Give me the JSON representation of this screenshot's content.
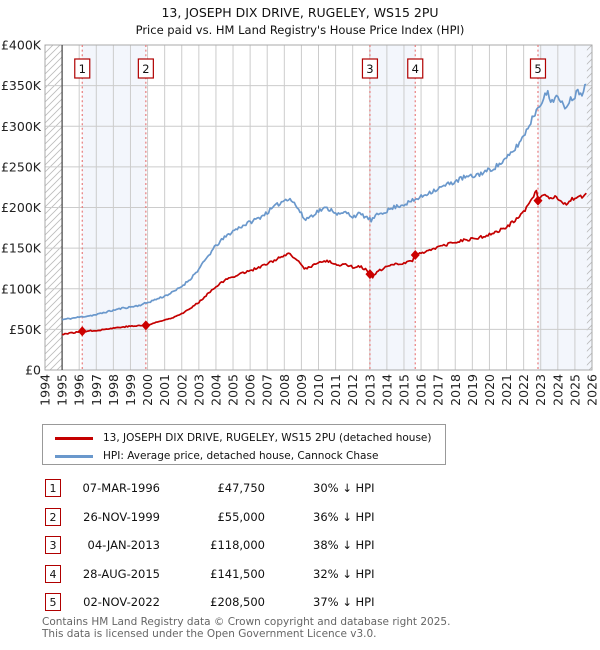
{
  "title": "13, JOSEPH DIX DRIVE, RUGELEY, WS15 2PU",
  "subtitle": "Price paid vs. HM Land Registry's House Price Index (HPI)",
  "chart_data": {
    "type": "line",
    "x_range": [
      1994,
      2026
    ],
    "y_range": [
      0,
      400000
    ],
    "grid": true,
    "legend_position": "bottom",
    "x_ticks": [
      1994,
      1995,
      1996,
      1997,
      1998,
      1999,
      2000,
      2001,
      2002,
      2003,
      2004,
      2005,
      2006,
      2007,
      2008,
      2009,
      2010,
      2011,
      2012,
      2013,
      2014,
      2015,
      2016,
      2017,
      2018,
      2019,
      2020,
      2021,
      2022,
      2023,
      2024,
      2025,
      2026
    ],
    "y_ticks": [
      {
        "v": 0,
        "label": "£0"
      },
      {
        "v": 50000,
        "label": "£50K"
      },
      {
        "v": 100000,
        "label": "£100K"
      },
      {
        "v": 150000,
        "label": "£150K"
      },
      {
        "v": 200000,
        "label": "£200K"
      },
      {
        "v": 250000,
        "label": "£250K"
      },
      {
        "v": 300000,
        "label": "£300K"
      },
      {
        "v": 350000,
        "label": "£350K"
      },
      {
        "v": 400000,
        "label": "£400K"
      }
    ],
    "series": [
      {
        "name": "13, JOSEPH DIX DRIVE, RUGELEY, WS15 2PU (detached house)",
        "color": "#c40000",
        "points": [
          [
            1995.0,
            44000
          ],
          [
            1995.5,
            45500
          ],
          [
            1996.0,
            46800
          ],
          [
            1996.18,
            47750
          ],
          [
            1996.5,
            48000
          ],
          [
            1997.0,
            48700
          ],
          [
            1997.5,
            50000
          ],
          [
            1998.0,
            51500
          ],
          [
            1998.5,
            53000
          ],
          [
            1999.0,
            53800
          ],
          [
            1999.5,
            54500
          ],
          [
            1999.9,
            55000
          ],
          [
            2000.2,
            56500
          ],
          [
            2000.5,
            58500
          ],
          [
            2001.0,
            61500
          ],
          [
            2001.5,
            65000
          ],
          [
            2002.0,
            69500
          ],
          [
            2002.5,
            75500
          ],
          [
            2003.0,
            83500
          ],
          [
            2003.5,
            93500
          ],
          [
            2004.0,
            103000
          ],
          [
            2004.5,
            110000
          ],
          [
            2005.0,
            115000
          ],
          [
            2005.5,
            119000
          ],
          [
            2006.0,
            122500
          ],
          [
            2006.5,
            126000
          ],
          [
            2007.0,
            130500
          ],
          [
            2007.5,
            136000
          ],
          [
            2008.0,
            140500
          ],
          [
            2008.3,
            142500
          ],
          [
            2008.7,
            136000
          ],
          [
            2009.2,
            124500
          ],
          [
            2009.6,
            128000
          ],
          [
            2010.0,
            132000
          ],
          [
            2010.4,
            134000
          ],
          [
            2010.8,
            132500
          ],
          [
            2011.2,
            128500
          ],
          [
            2011.6,
            130500
          ],
          [
            2012.0,
            126500
          ],
          [
            2012.4,
            128000
          ],
          [
            2012.8,
            123000
          ],
          [
            2013.01,
            118000
          ],
          [
            2013.15,
            113500
          ],
          [
            2013.4,
            120000
          ],
          [
            2013.7,
            124000
          ],
          [
            2014.0,
            127000
          ],
          [
            2014.5,
            130000
          ],
          [
            2015.0,
            132000
          ],
          [
            2015.5,
            134500
          ],
          [
            2015.66,
            141500
          ],
          [
            2016.0,
            144000
          ],
          [
            2016.5,
            148000
          ],
          [
            2017.0,
            151000
          ],
          [
            2017.5,
            154000
          ],
          [
            2018.0,
            157000
          ],
          [
            2018.5,
            160000
          ],
          [
            2019.0,
            161000
          ],
          [
            2019.5,
            163500
          ],
          [
            2020.0,
            166500
          ],
          [
            2020.5,
            170500
          ],
          [
            2021.0,
            176000
          ],
          [
            2021.5,
            184000
          ],
          [
            2022.0,
            195000
          ],
          [
            2022.4,
            206500
          ],
          [
            2022.7,
            218000
          ],
          [
            2022.8,
            223000
          ],
          [
            2022.84,
            208500
          ],
          [
            2023.1,
            213000
          ],
          [
            2023.4,
            216000
          ],
          [
            2023.6,
            209000
          ],
          [
            2023.9,
            213000
          ],
          [
            2024.1,
            207000
          ],
          [
            2024.4,
            203000
          ],
          [
            2024.7,
            208000
          ],
          [
            2025.0,
            212000
          ],
          [
            2025.2,
            216000
          ],
          [
            2025.4,
            213000
          ],
          [
            2025.55,
            217000
          ],
          [
            2025.7,
            220000
          ]
        ]
      },
      {
        "name": "HPI: Average price, detached house, Cannock Chase",
        "color": "#6a98cc",
        "points": [
          [
            1995.0,
            62000
          ],
          [
            1995.5,
            63500
          ],
          [
            1996.0,
            65000
          ],
          [
            1996.5,
            66500
          ],
          [
            1997.0,
            68000
          ],
          [
            1997.5,
            71000
          ],
          [
            1998.0,
            73500
          ],
          [
            1998.5,
            76000
          ],
          [
            1999.0,
            77500
          ],
          [
            1999.5,
            79500
          ],
          [
            2000.0,
            83000
          ],
          [
            2000.5,
            87000
          ],
          [
            2001.0,
            91000
          ],
          [
            2001.5,
            96000
          ],
          [
            2002.0,
            103000
          ],
          [
            2002.5,
            112000
          ],
          [
            2003.0,
            124000
          ],
          [
            2003.5,
            139000
          ],
          [
            2004.0,
            153000
          ],
          [
            2004.5,
            163000
          ],
          [
            2005.0,
            171000
          ],
          [
            2005.5,
            177000
          ],
          [
            2006.0,
            182000
          ],
          [
            2006.5,
            187000
          ],
          [
            2007.0,
            194000
          ],
          [
            2007.5,
            202000
          ],
          [
            2008.0,
            209000
          ],
          [
            2008.3,
            212000
          ],
          [
            2008.7,
            202000
          ],
          [
            2009.2,
            185000
          ],
          [
            2009.6,
            190000
          ],
          [
            2010.0,
            196000
          ],
          [
            2010.4,
            199000
          ],
          [
            2010.8,
            197000
          ],
          [
            2011.2,
            191000
          ],
          [
            2011.6,
            194000
          ],
          [
            2012.0,
            189000
          ],
          [
            2012.4,
            192000
          ],
          [
            2012.8,
            188000
          ],
          [
            2013.1,
            184000
          ],
          [
            2013.5,
            192000
          ],
          [
            2014.0,
            196000
          ],
          [
            2014.5,
            201000
          ],
          [
            2015.0,
            204000
          ],
          [
            2015.5,
            208000
          ],
          [
            2016.0,
            213000
          ],
          [
            2016.5,
            219000
          ],
          [
            2017.0,
            223000
          ],
          [
            2017.5,
            228000
          ],
          [
            2018.0,
            232000
          ],
          [
            2018.5,
            237000
          ],
          [
            2019.0,
            238000
          ],
          [
            2019.5,
            242000
          ],
          [
            2020.0,
            246000
          ],
          [
            2020.5,
            252000
          ],
          [
            2021.0,
            260000
          ],
          [
            2021.5,
            272000
          ],
          [
            2022.0,
            288000
          ],
          [
            2022.4,
            305000
          ],
          [
            2022.8,
            322000
          ],
          [
            2023.1,
            333000
          ],
          [
            2023.4,
            341000
          ],
          [
            2023.6,
            330000
          ],
          [
            2023.9,
            338000
          ],
          [
            2024.1,
            330000
          ],
          [
            2024.4,
            324000
          ],
          [
            2024.7,
            332000
          ],
          [
            2025.0,
            338000
          ],
          [
            2025.2,
            344000
          ],
          [
            2025.4,
            341000
          ],
          [
            2025.55,
            347000
          ],
          [
            2025.7,
            353000
          ]
        ]
      }
    ],
    "sales": [
      {
        "n": 1,
        "date": "07-MAR-1996",
        "year": 1996.18,
        "price": 47750,
        "price_label": "£47,750",
        "hpi_diff": "30% ↓ HPI"
      },
      {
        "n": 2,
        "date": "26-NOV-1999",
        "year": 1999.9,
        "price": 55000,
        "price_label": "£55,000",
        "hpi_diff": "36% ↓ HPI"
      },
      {
        "n": 3,
        "date": "04-JAN-2013",
        "year": 2013.01,
        "price": 118000,
        "price_label": "£118,000",
        "hpi_diff": "38% ↓ HPI"
      },
      {
        "n": 4,
        "date": "28-AUG-2015",
        "year": 2015.66,
        "price": 141500,
        "price_label": "£141,500",
        "hpi_diff": "32% ↓ HPI"
      },
      {
        "n": 5,
        "date": "02-NOV-2022",
        "year": 2022.84,
        "price": 208500,
        "price_label": "£208,500",
        "hpi_diff": "37% ↓ HPI"
      }
    ],
    "owned_bands": [
      [
        1996.18,
        1999.9
      ],
      [
        2013.01,
        2015.66
      ],
      [
        2022.84,
        2026
      ]
    ],
    "no_data_bands": [
      [
        1994,
        1995.0
      ],
      [
        2025.7,
        2026
      ]
    ],
    "colors": {
      "property_red": "#c40000",
      "hpi_blue": "#6a98cc",
      "band": "#f3f6fc",
      "dashed": "#e87c7c",
      "marker_box_red": "#b00000",
      "grid": "#cccccc",
      "frame": "#aaaaaa",
      "axis": "#444444"
    }
  },
  "footer": {
    "line1": "Contains HM Land Registry data © Crown copyright and database right 2025.",
    "line2": "This data is licensed under the Open Government Licence v3.0."
  }
}
